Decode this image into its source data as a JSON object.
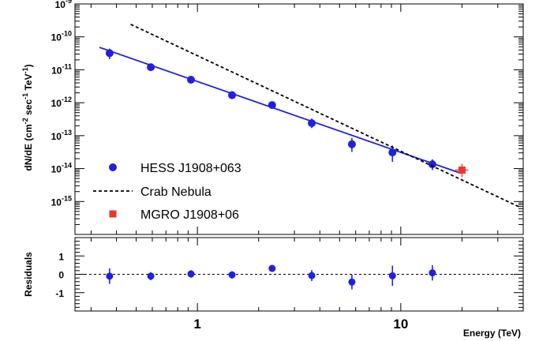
{
  "chart_data": [
    {
      "type": "scatter",
      "panel": "spectrum",
      "ylabel": "dN/dE (cm^-2 sec^-1 TeV^-1)",
      "ylabel_parts": {
        "pre": "dN/dE (cm",
        "exp1": "-2",
        "mid": " sec",
        "exp2": "-1",
        "mid2": " TeV",
        "exp3": "-1",
        "post": ")"
      },
      "xlabel": "Energy (TeV)",
      "xscale": "log",
      "yscale": "log",
      "xlim": [
        0.25,
        40
      ],
      "ylim": [
        1e-16,
        1e-09
      ],
      "x_tick_labels": [
        {
          "value": 1,
          "label": "1"
        },
        {
          "value": 10,
          "label": "10"
        }
      ],
      "y_tick_labels": [
        {
          "exp": -9,
          "base": "10",
          "sup": "-9"
        },
        {
          "exp": -10,
          "base": "10",
          "sup": "-10"
        },
        {
          "exp": -11,
          "base": "10",
          "sup": "-11"
        },
        {
          "exp": -12,
          "base": "10",
          "sup": "-12"
        },
        {
          "exp": -13,
          "base": "10",
          "sup": "-13"
        },
        {
          "exp": -14,
          "base": "10",
          "sup": "-14"
        },
        {
          "exp": -15,
          "base": "10",
          "sup": "-15"
        }
      ],
      "series": [
        {
          "name": "HESS J1908+063",
          "marker": "circle",
          "color": "#1f1fe6",
          "points": [
            {
              "x": 0.37,
              "y": 3.2e-11,
              "ylo": 2.1e-11,
              "yhi": 4.4e-11
            },
            {
              "x": 0.59,
              "y": 1.2e-11,
              "ylo": 9.5e-12,
              "yhi": 1.5e-11
            },
            {
              "x": 0.93,
              "y": 5e-12,
              "ylo": 4.4e-12,
              "yhi": 5.7e-12
            },
            {
              "x": 1.48,
              "y": 1.7e-12,
              "ylo": 1.5e-12,
              "yhi": 1.9e-12
            },
            {
              "x": 2.33,
              "y": 8.5e-13,
              "ylo": 7.8e-13,
              "yhi": 9.3e-13
            },
            {
              "x": 3.65,
              "y": 2.4e-13,
              "ylo": 1.7e-13,
              "yhi": 3.3e-13
            },
            {
              "x": 5.75,
              "y": 5.5e-14,
              "ylo": 3.2e-14,
              "yhi": 8.5e-14
            },
            {
              "x": 9.1,
              "y": 3.1e-14,
              "ylo": 1.6e-14,
              "yhi": 5e-14
            },
            {
              "x": 14.3,
              "y": 1.35e-14,
              "ylo": 9e-15,
              "yhi": 1.9e-14
            }
          ]
        },
        {
          "name": "HESS fit",
          "marker": "line",
          "color": "#1f1fe6",
          "points": [
            {
              "x": 0.33,
              "y": 4.8e-11
            },
            {
              "x": 19.5,
              "y": 7.4e-15
            }
          ]
        },
        {
          "name": "Crab Nebula",
          "marker": "dashed-line",
          "color": "#000000",
          "points": [
            {
              "x": 0.47,
              "y": 2.4e-10
            },
            {
              "x": 38,
              "y": 7e-16
            }
          ]
        },
        {
          "name": "MGRO J1908+06",
          "marker": "square",
          "color": "#e8392a",
          "points": [
            {
              "x": 20,
              "y": 9e-15,
              "ylo": 5.5e-15,
              "yhi": 1.4e-14,
              "xlo": 18.5,
              "xhi": 21.5
            }
          ]
        }
      ],
      "legend": {
        "placement": "bottom-left",
        "entries": [
          {
            "label": "HESS J1908+063",
            "marker": "circle",
            "color": "#1f1fe6"
          },
          {
            "label": "Crab Nebula",
            "marker": "dashed-line",
            "color": "#000000"
          },
          {
            "label": "MGRO J1908+06",
            "marker": "square",
            "color": "#e8392a"
          }
        ]
      }
    },
    {
      "type": "scatter",
      "panel": "residuals",
      "ylabel": "Residuals",
      "xscale": "log",
      "xlim": [
        0.25,
        40
      ],
      "ylim": [
        -2,
        2
      ],
      "y_tick_labels": [
        "1",
        "0",
        "-1"
      ],
      "y_tick_values": [
        1,
        0,
        -1
      ],
      "reference_line": 0,
      "series": [
        {
          "name": "HESS J1908+063 residuals",
          "marker": "circle",
          "color": "#1f1fe6",
          "points": [
            {
              "x": 0.37,
              "y": -0.1,
              "err": 0.42
            },
            {
              "x": 0.59,
              "y": -0.1,
              "err": 0.22
            },
            {
              "x": 0.93,
              "y": 0.02,
              "err": 0.2
            },
            {
              "x": 1.48,
              "y": -0.03,
              "err": 0.2
            },
            {
              "x": 2.33,
              "y": 0.32,
              "err": 0
            },
            {
              "x": 3.65,
              "y": -0.07,
              "err": 0.3
            },
            {
              "x": 5.75,
              "y": -0.42,
              "err": 0.4
            },
            {
              "x": 9.1,
              "y": -0.08,
              "err": 0.55
            },
            {
              "x": 14.3,
              "y": 0.08,
              "err": 0.42
            }
          ]
        }
      ]
    }
  ]
}
